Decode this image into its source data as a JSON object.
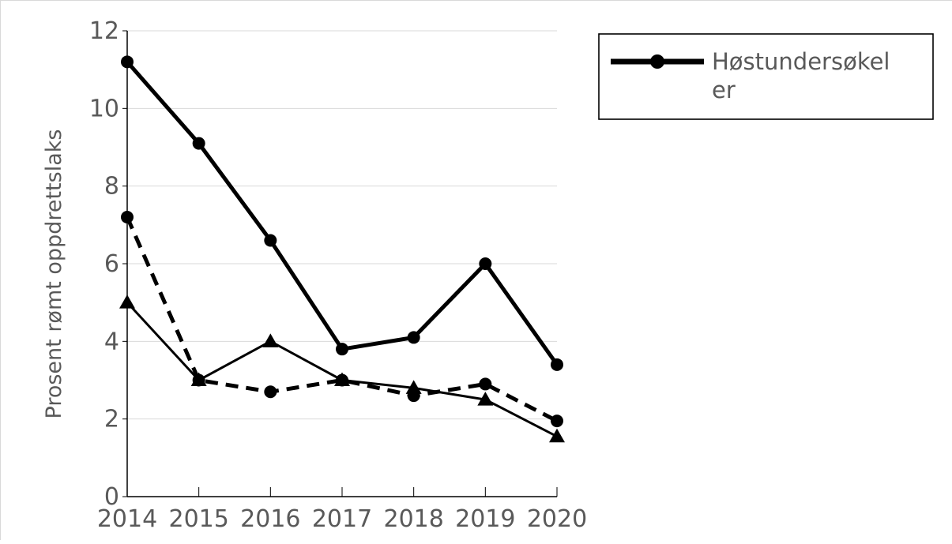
{
  "chart_data": {
    "type": "line",
    "x": [
      2014,
      2015,
      2016,
      2017,
      2018,
      2019,
      2020
    ],
    "xtick_labels": [
      "2014",
      "2015",
      "2016",
      "2017",
      "2018",
      "2019",
      "2020"
    ],
    "ylabel": "Prosent rømt oppdrettslaks",
    "ylim": [
      0,
      12
    ],
    "yticks": [
      0,
      2,
      4,
      6,
      8,
      10,
      12
    ],
    "ytick_labels": [
      "0",
      "2",
      "4",
      "6",
      "8",
      "10",
      "12"
    ],
    "grid": "horizontal",
    "legend_position": "right",
    "series": [
      {
        "name": "Høstundersøkelser",
        "legend_lines": [
          "Høstundersøkel",
          "er"
        ],
        "values": [
          11.2,
          9.1,
          6.6,
          3.8,
          4.1,
          6.0,
          3.4
        ],
        "line": "solid-thick",
        "marker": "circle",
        "color": "#000000"
      },
      {
        "values": [
          7.2,
          3.0,
          2.7,
          3.0,
          2.6,
          2.9,
          1.95
        ],
        "line": "dashed",
        "marker": "circle",
        "color": "#000000"
      },
      {
        "values": [
          5.0,
          3.0,
          4.0,
          3.0,
          2.8,
          2.5,
          1.55
        ],
        "line": "solid-thin",
        "marker": "triangle",
        "color": "#000000"
      }
    ]
  }
}
